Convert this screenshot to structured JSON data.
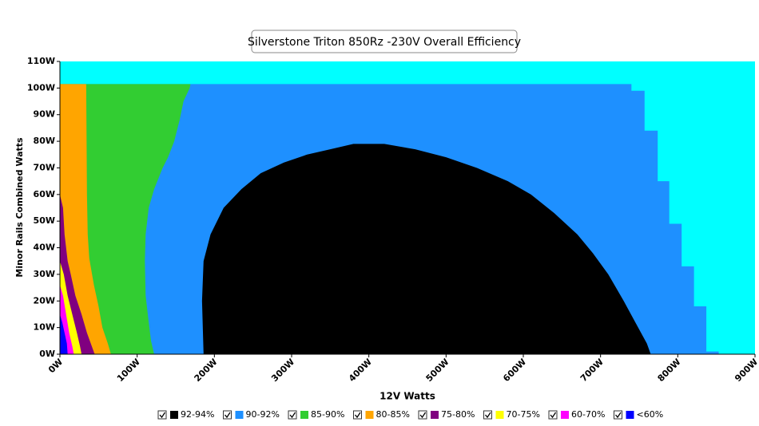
{
  "chart_data": {
    "type": "region",
    "title": "Silverstone Triton 850Rz -230V Overall Efficiency",
    "xlabel": "12V Watts",
    "ylabel": "Minor Rails Combined Watts",
    "background_color": "#00ffff",
    "xlim": [
      0,
      900
    ],
    "ylim": [
      0,
      110
    ],
    "xticks": [
      {
        "value": 0,
        "label": "0W"
      },
      {
        "value": 100,
        "label": "100W"
      },
      {
        "value": 200,
        "label": "200W"
      },
      {
        "value": 300,
        "label": "300W"
      },
      {
        "value": 400,
        "label": "400W"
      },
      {
        "value": 500,
        "label": "500W"
      },
      {
        "value": 600,
        "label": "600W"
      },
      {
        "value": 700,
        "label": "700W"
      },
      {
        "value": 800,
        "label": "800W"
      },
      {
        "value": 900,
        "label": "900W"
      }
    ],
    "yticks": [
      {
        "value": 0,
        "label": "0W"
      },
      {
        "value": 10,
        "label": "10W"
      },
      {
        "value": 20,
        "label": "20W"
      },
      {
        "value": 30,
        "label": "30W"
      },
      {
        "value": 40,
        "label": "40W"
      },
      {
        "value": 50,
        "label": "50W"
      },
      {
        "value": 60,
        "label": "60W"
      },
      {
        "value": 70,
        "label": "70W"
      },
      {
        "value": 80,
        "label": "80W"
      },
      {
        "value": 90,
        "label": "90W"
      },
      {
        "value": 100,
        "label": "100W"
      },
      {
        "value": 110,
        "label": "110W"
      }
    ],
    "series": [
      {
        "name": "92-94%",
        "color": "#000000",
        "x": [
          186,
          184,
          186,
          195,
          212,
          235,
          260,
          290,
          320,
          350,
          380,
          420,
          460,
          500,
          540,
          580,
          610,
          640,
          670,
          690,
          710,
          730,
          745,
          760,
          765
        ],
        "y": [
          0,
          20,
          35,
          45,
          55,
          62,
          68,
          72,
          75,
          77,
          79,
          79,
          77,
          74,
          70,
          65,
          60,
          53,
          45,
          38,
          30,
          20,
          12,
          4,
          0
        ]
      },
      {
        "name": "90-92%",
        "color": "#1e90ff",
        "x": [
          0,
          853,
          853,
          837,
          837,
          821,
          821,
          805,
          805,
          789,
          789,
          774,
          774,
          757,
          757,
          740,
          740,
          0
        ],
        "y": [
          0,
          0,
          1,
          1,
          18,
          18,
          33,
          33,
          49,
          49,
          65,
          65,
          84,
          84,
          99,
          99,
          101.5,
          101.5
        ]
      },
      {
        "name": "85-90%",
        "color": "#32cd32",
        "x": [
          0,
          122,
          118,
          115,
          111,
          110,
          111,
          115,
          122,
          133,
          140,
          148,
          155,
          160,
          168,
          169,
          0
        ],
        "y": [
          0,
          0,
          5,
          12,
          22,
          35,
          45,
          55,
          62,
          70,
          74,
          80,
          88,
          95,
          100,
          101.5,
          101.5
        ]
      },
      {
        "name": "80-85%",
        "color": "#ffa500",
        "x": [
          0,
          66,
          62,
          55,
          50,
          44,
          38,
          36,
          35,
          34,
          0
        ],
        "y": [
          0,
          0,
          4,
          10,
          18,
          26,
          36,
          45,
          60,
          101.5,
          101.5
        ]
      },
      {
        "name": "75-80%",
        "color": "#800080",
        "x": [
          0,
          4,
          6,
          10,
          14,
          20,
          28,
          35,
          40,
          45,
          0
        ],
        "y": [
          60,
          55,
          45,
          35,
          30,
          22,
          15,
          8,
          4,
          0,
          0
        ]
      },
      {
        "name": "70-75%",
        "color": "#ffff00",
        "x": [
          0,
          5,
          10,
          16,
          22,
          26,
          28,
          0
        ],
        "y": [
          35,
          30,
          22,
          15,
          8,
          3,
          0,
          0
        ]
      },
      {
        "name": "60-70%",
        "color": "#ff00ff",
        "x": [
          0,
          4,
          8,
          12,
          16,
          18,
          0
        ],
        "y": [
          26,
          22,
          15,
          8,
          3,
          0,
          0
        ]
      },
      {
        "name": "<60%",
        "color": "#0000ff",
        "x": [
          0,
          3,
          6,
          9,
          10,
          0
        ],
        "y": [
          15,
          12,
          8,
          4,
          0,
          0
        ]
      }
    ]
  }
}
